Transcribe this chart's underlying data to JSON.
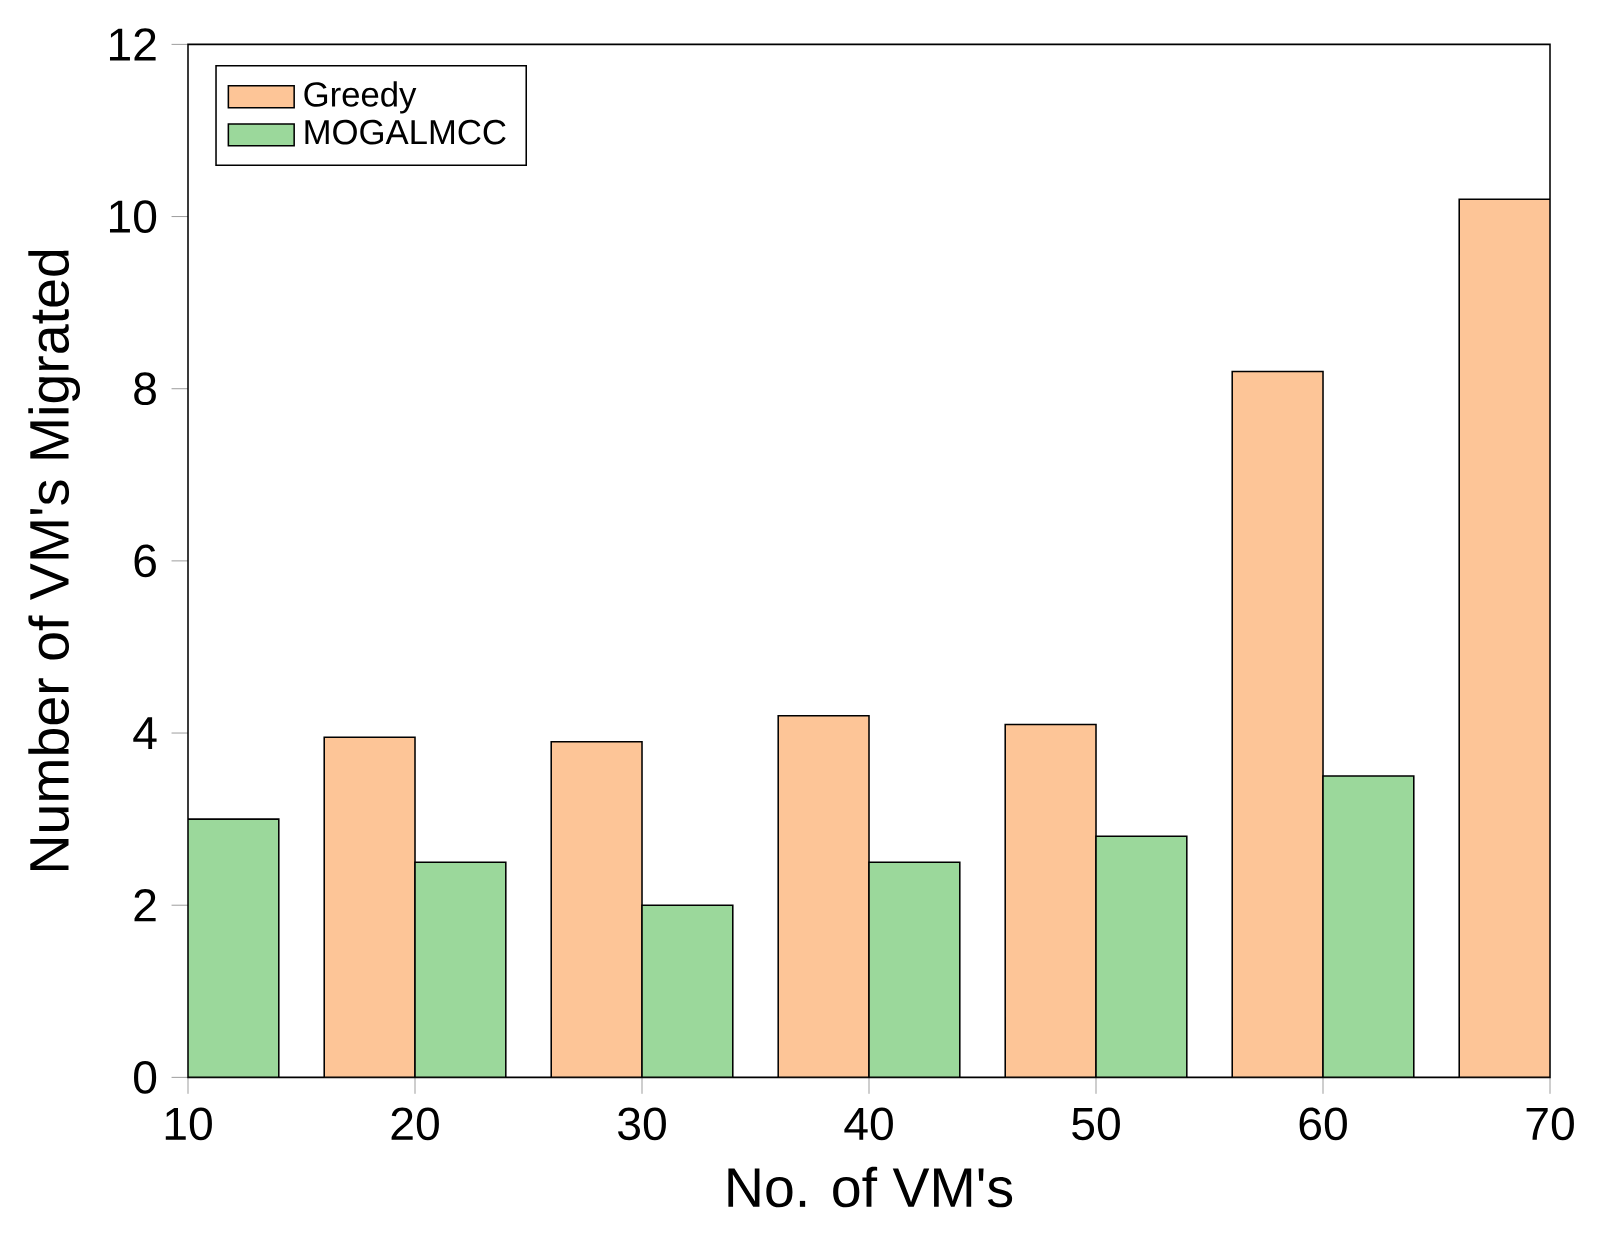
{
  "chart_data": {
    "type": "bar",
    "xlabel": "No. of VM's",
    "ylabel": "Number of VM's Migrated",
    "x": [
      10,
      20,
      30,
      40,
      50,
      60,
      70
    ],
    "series": [
      {
        "name": "Greedy",
        "color": "#fdc597",
        "values": [
          null,
          3.95,
          3.9,
          4.2,
          4.1,
          8.2,
          10.2
        ]
      },
      {
        "name": "MOGALMCC",
        "color": "#9bd89b",
        "values": [
          3.0,
          2.5,
          2.0,
          2.5,
          2.8,
          3.5,
          null
        ]
      }
    ],
    "xlim": [
      10,
      70
    ],
    "xticks": [
      10,
      20,
      30,
      40,
      50,
      60,
      70
    ],
    "ylim": [
      0,
      12
    ],
    "yticks": [
      0,
      2,
      4,
      6,
      8,
      10,
      12
    ],
    "legend": "top left"
  }
}
